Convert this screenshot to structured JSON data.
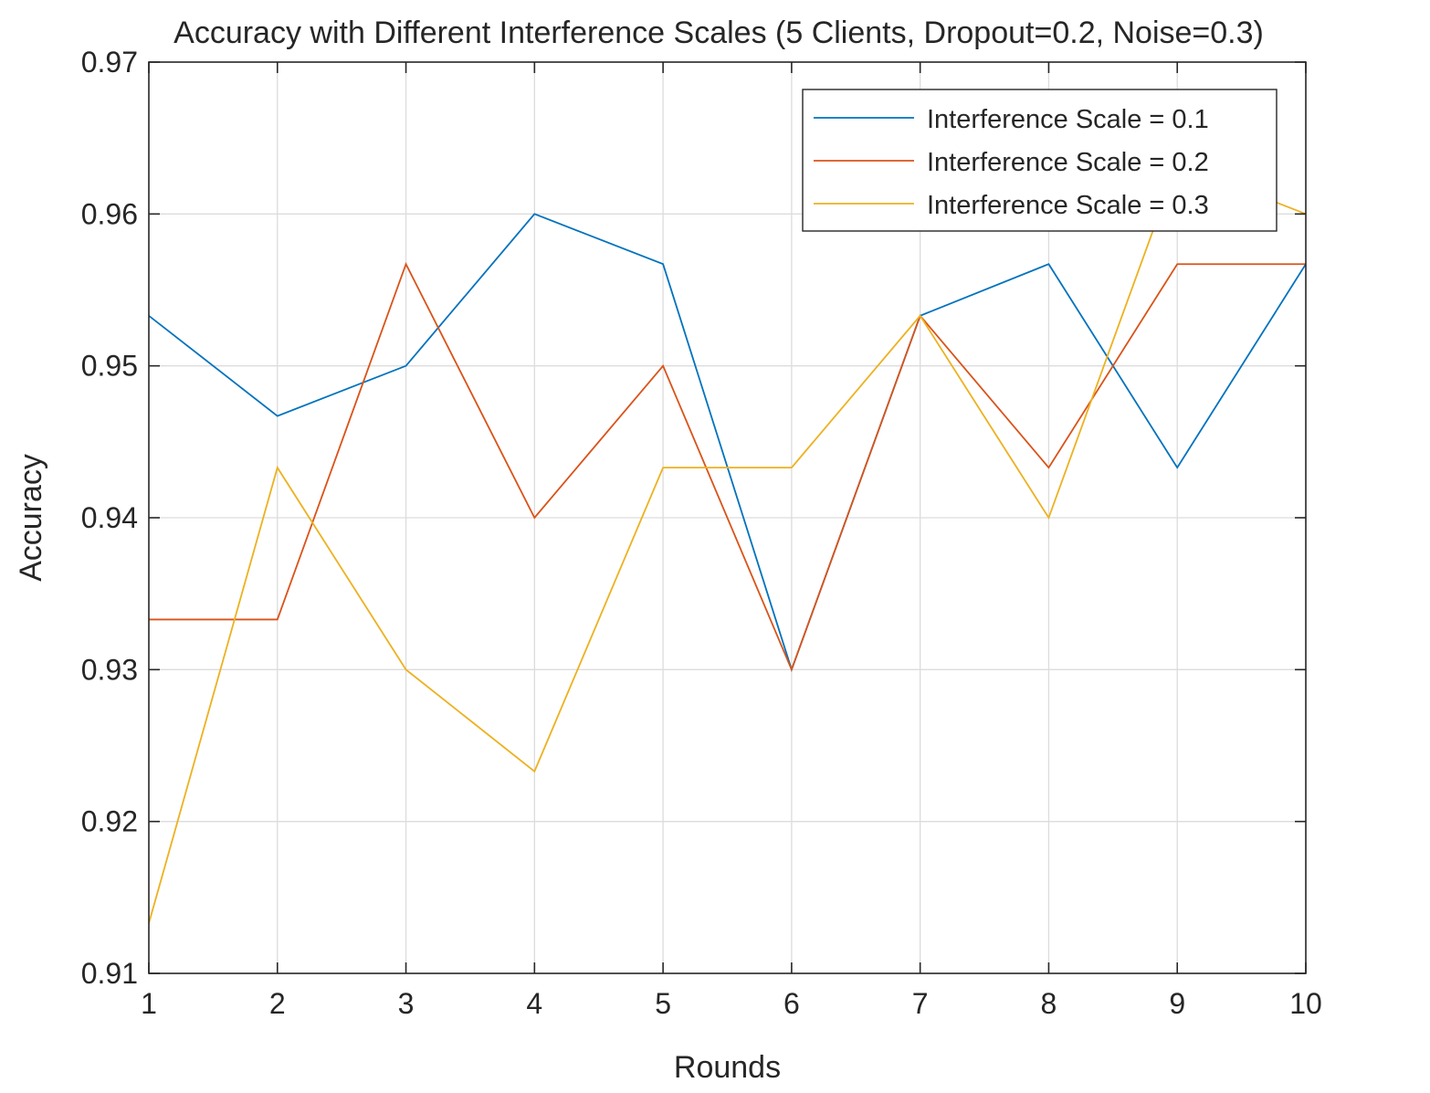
{
  "chart_data": {
    "type": "line",
    "title": "Accuracy with Different Interference Scales (5 Clients, Dropout=0.2, Noise=0.3)",
    "xlabel": "Rounds",
    "ylabel": "Accuracy",
    "x": [
      1,
      2,
      3,
      4,
      5,
      6,
      7,
      8,
      9,
      10
    ],
    "xlim": [
      1,
      10
    ],
    "ylim": [
      0.91,
      0.97
    ],
    "xticks": [
      1,
      2,
      3,
      4,
      5,
      6,
      7,
      8,
      9,
      10
    ],
    "yticks": [
      0.91,
      0.92,
      0.93,
      0.94,
      0.95,
      0.96,
      0.97
    ],
    "ytick_labels": [
      "0.91",
      "0.92",
      "0.93",
      "0.94",
      "0.95",
      "0.96",
      "0.97"
    ],
    "grid": true,
    "legend_position": "top-right",
    "series": [
      {
        "name": "Interference Scale = 0.1",
        "color": "#0072BD",
        "values": [
          0.9533,
          0.9467,
          0.95,
          0.96,
          0.9567,
          0.93,
          0.9533,
          0.9567,
          0.9433,
          0.9567
        ]
      },
      {
        "name": "Interference Scale = 0.2",
        "color": "#D95319",
        "values": [
          0.9333,
          0.9333,
          0.9567,
          0.94,
          0.95,
          0.93,
          0.9533,
          0.9433,
          0.9567,
          0.9567
        ]
      },
      {
        "name": "Interference Scale = 0.3",
        "color": "#EDB120",
        "values": [
          0.9133,
          0.9433,
          0.93,
          0.9233,
          0.9433,
          0.9433,
          0.9533,
          0.94,
          0.9633,
          0.96
        ]
      }
    ]
  }
}
